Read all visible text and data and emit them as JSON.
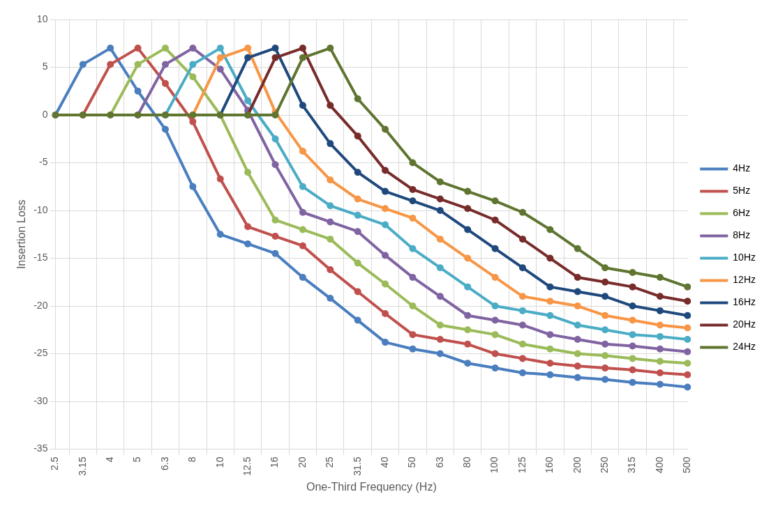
{
  "chart_data": {
    "type": "line",
    "xlabel": "One-Third Frequency (Hz)",
    "ylabel": "Insertion Loss",
    "categories": [
      "2.5",
      "3.15",
      "4",
      "5",
      "6.3",
      "8",
      "10",
      "12.5",
      "16",
      "20",
      "25",
      "31.5",
      "40",
      "50",
      "63",
      "80",
      "100",
      "125",
      "160",
      "200",
      "250",
      "315",
      "400",
      "500"
    ],
    "ylim": [
      -35,
      10
    ],
    "yticks": [
      -35,
      -30,
      -25,
      -20,
      -15,
      -10,
      -5,
      0,
      5,
      10
    ],
    "grid": true,
    "legend": "right",
    "marker": "circle",
    "line_style": "solid",
    "series": [
      {
        "name": "4Hz",
        "color": "#4a7ebf",
        "values": [
          0,
          5.3,
          7,
          2.5,
          -1.5,
          -7.5,
          -12.5,
          -13.5,
          -14.5,
          -17,
          -19.2,
          -21.5,
          -23.8,
          -24.5,
          -25,
          -26,
          -26.5,
          -27,
          -27.2,
          -27.5,
          -27.7,
          -28,
          -28.2,
          -28.5
        ]
      },
      {
        "name": "5Hz",
        "color": "#c0504d",
        "values": [
          null,
          0,
          5.3,
          7,
          3.3,
          -0.7,
          -6.7,
          -11.7,
          -12.7,
          -13.7,
          -16.2,
          -18.5,
          -20.8,
          -23,
          -23.5,
          -24,
          -25,
          -25.5,
          -26,
          -26.3,
          -26.5,
          -26.7,
          -27,
          -27.2
        ]
      },
      {
        "name": "6Hz",
        "color": "#9bbb59",
        "values": [
          null,
          null,
          0,
          5.3,
          7,
          4,
          0,
          -6,
          -11,
          -12,
          -13,
          -15.5,
          -17.7,
          -20,
          -22,
          -22.5,
          -23,
          -24,
          -24.5,
          -25,
          -25.2,
          -25.5,
          -25.8,
          -26
        ]
      },
      {
        "name": "8Hz",
        "color": "#8064a2",
        "values": [
          null,
          null,
          null,
          0,
          5.3,
          7,
          4.8,
          0.5,
          -5.2,
          -10.2,
          -11.2,
          -12.2,
          -14.7,
          -17,
          -19,
          -21,
          -21.5,
          -22,
          -23,
          -23.5,
          -24,
          -24.2,
          -24.5,
          -24.8
        ]
      },
      {
        "name": "10Hz",
        "color": "#4bacc6",
        "values": [
          null,
          null,
          null,
          null,
          0,
          5.3,
          7,
          1.5,
          -2.5,
          -7.5,
          -9.5,
          -10.5,
          -11.5,
          -14,
          -16,
          -18,
          -20,
          -20.5,
          -21,
          -22,
          -22.5,
          -23,
          -23.2,
          -23.5
        ]
      },
      {
        "name": "12Hz",
        "color": "#f79646",
        "values": [
          null,
          null,
          null,
          null,
          null,
          0,
          6,
          7,
          0.3,
          -3.8,
          -6.8,
          -8.8,
          -9.8,
          -10.8,
          -13,
          -15,
          -17,
          -19,
          -19.5,
          -20,
          -21,
          -21.5,
          -22,
          -22.3
        ]
      },
      {
        "name": "16Hz",
        "color": "#1f497d",
        "values": [
          null,
          null,
          null,
          null,
          null,
          null,
          0,
          6,
          7,
          1,
          -3,
          -6,
          -8,
          -9,
          -10,
          -12,
          -14,
          -16,
          -18,
          -18.5,
          -19,
          -20,
          -20.5,
          -21
        ]
      },
      {
        "name": "20Hz",
        "color": "#772c2a",
        "values": [
          null,
          null,
          null,
          null,
          null,
          null,
          null,
          0,
          6,
          7,
          1,
          -2.2,
          -5.8,
          -7.8,
          -8.8,
          -9.8,
          -11,
          -13,
          -15,
          -17,
          -17.5,
          -18,
          -19,
          -19.5
        ]
      },
      {
        "name": "24Hz",
        "color": "#5f7530",
        "values": [
          0,
          0,
          0,
          0,
          0,
          0,
          0,
          0,
          0,
          6,
          7,
          1.7,
          -1.5,
          -5,
          -7,
          -8,
          -9,
          -10.2,
          -12,
          -14,
          -16,
          -16.5,
          -17,
          -18
        ]
      }
    ]
  }
}
